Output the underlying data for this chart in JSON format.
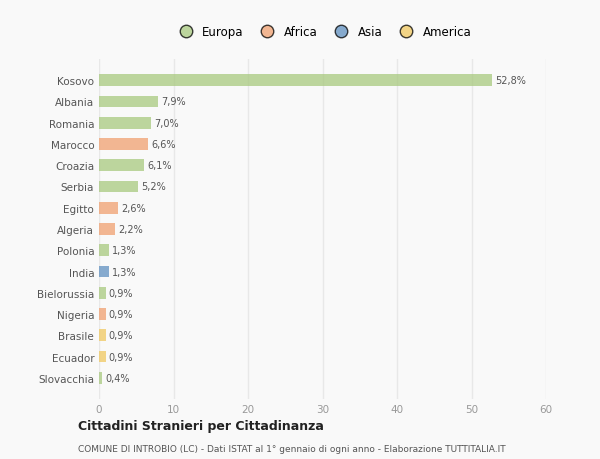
{
  "countries": [
    "Kosovo",
    "Albania",
    "Romania",
    "Marocco",
    "Croazia",
    "Serbia",
    "Egitto",
    "Algeria",
    "Polonia",
    "India",
    "Bielorussia",
    "Nigeria",
    "Brasile",
    "Ecuador",
    "Slovacchia"
  ],
  "values": [
    52.8,
    7.9,
    7.0,
    6.6,
    6.1,
    5.2,
    2.6,
    2.2,
    1.3,
    1.3,
    0.9,
    0.9,
    0.9,
    0.9,
    0.4
  ],
  "labels": [
    "52,8%",
    "7,9%",
    "7,0%",
    "6,6%",
    "6,1%",
    "5,2%",
    "2,6%",
    "2,2%",
    "1,3%",
    "1,3%",
    "0,9%",
    "0,9%",
    "0,9%",
    "0,9%",
    "0,4%"
  ],
  "continents": [
    "Europa",
    "Europa",
    "Europa",
    "Africa",
    "Europa",
    "Europa",
    "Africa",
    "Africa",
    "Europa",
    "Asia",
    "Europa",
    "Africa",
    "America",
    "America",
    "Europa"
  ],
  "colors": {
    "Europa": "#a8c97f",
    "Africa": "#f0a070",
    "Asia": "#6090c0",
    "America": "#f0c860"
  },
  "legend_order": [
    "Europa",
    "Africa",
    "Asia",
    "America"
  ],
  "xlim": [
    0,
    60
  ],
  "xticks": [
    0,
    10,
    20,
    30,
    40,
    50,
    60
  ],
  "title": "Cittadini Stranieri per Cittadinanza",
  "subtitle": "COMUNE DI INTROBIO (LC) - Dati ISTAT al 1° gennaio di ogni anno - Elaborazione TUTTITALIA.IT",
  "bg_color": "#f9f9f9",
  "grid_color": "#dddddd",
  "bar_alpha": 0.75
}
